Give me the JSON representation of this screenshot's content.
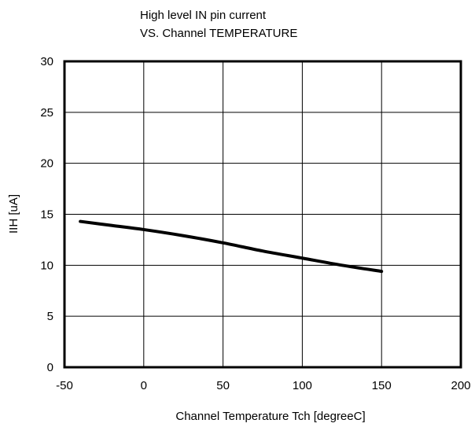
{
  "chart_data": {
    "type": "line",
    "title_lines": [
      "High level  IN pin current",
      "VS. Channel TEMPERATURE"
    ],
    "xlabel": "Channel Temperature  Tch [degreeC]",
    "ylabel": "IIH [uA]",
    "xlim": [
      -50,
      200
    ],
    "ylim": [
      0,
      30
    ],
    "x_ticks": [
      -50,
      0,
      50,
      100,
      150,
      200
    ],
    "y_ticks": [
      0,
      5,
      10,
      15,
      20,
      25,
      30
    ],
    "grid": true,
    "series": [
      {
        "x": [
          -40,
          -20,
          0,
          25,
          50,
          75,
          100,
          125,
          150
        ],
        "y": [
          14.3,
          13.9,
          13.5,
          12.9,
          12.2,
          11.4,
          10.7,
          10.0,
          9.4
        ]
      }
    ]
  }
}
